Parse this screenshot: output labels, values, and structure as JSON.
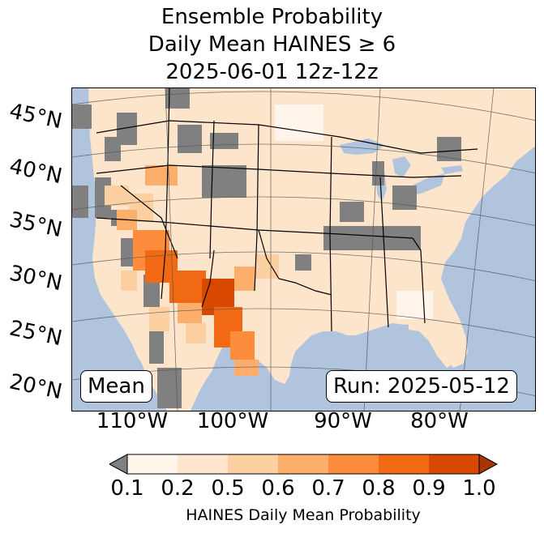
{
  "title": {
    "line1": "Ensemble Probability",
    "line2": "Daily Mean HAINES ≥ 6",
    "line3": "2025-06-01 12z-12z"
  },
  "map": {
    "lat_labels": [
      "45°N",
      "40°N",
      "35°N",
      "30°N",
      "25°N",
      "20°N"
    ],
    "lon_labels": [
      "110°W",
      "100°W",
      "90°W",
      "80°W"
    ],
    "stat_label": "Mean",
    "run_label": "Run: 2025-05-12",
    "colors": {
      "ocean": "#b0c4de",
      "land_base": "#fde5cc",
      "missing": "#808080",
      "lakes": "#b0c4de"
    },
    "regions": [
      {
        "name": "southwest-desert",
        "level": "0.8"
      },
      {
        "name": "west-texas",
        "level": "0.9"
      },
      {
        "name": "great-basin",
        "level": "0.5"
      },
      {
        "name": "missing-northwest",
        "level": "missing"
      }
    ]
  },
  "colorbar": {
    "ticks": [
      "0.1",
      "0.2",
      "0.5",
      "0.6",
      "0.7",
      "0.8",
      "0.9",
      "1.0"
    ],
    "colors": [
      "#fff5eb",
      "#fee6ce",
      "#fdd0a2",
      "#fdae6b",
      "#fd8d3c",
      "#f16913",
      "#d94801",
      "#a63603"
    ],
    "under_color": "#808080",
    "label": "HAINES Daily Mean Probability"
  }
}
